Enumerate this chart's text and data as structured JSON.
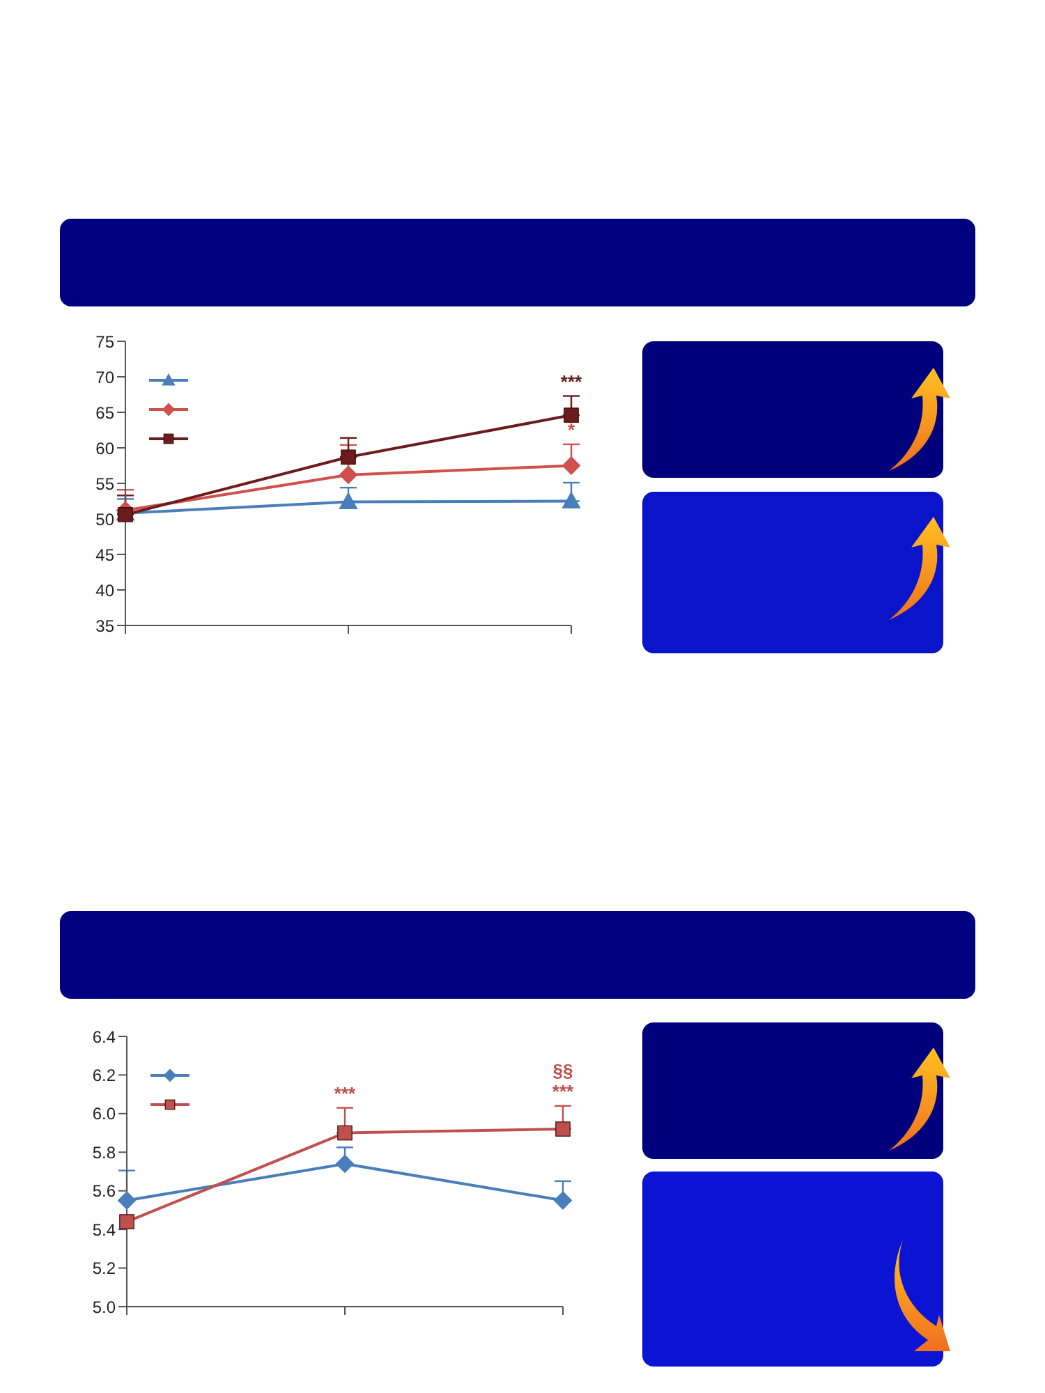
{
  "chart_data": [
    {
      "type": "line",
      "categories": [
        null,
        null,
        null
      ],
      "ylim": [
        35,
        75
      ],
      "yticks": [
        35,
        40,
        45,
        50,
        55,
        60,
        65,
        70,
        75
      ],
      "series": [
        {
          "color": "#4a7ebb",
          "marker": "triangle",
          "values": [
            50.8,
            52.4,
            52.5
          ],
          "errors": [
            [
              50.8,
              52.8
            ],
            [
              52.4,
              54.4
            ],
            [
              52.5,
              55.1
            ]
          ]
        },
        {
          "color": "#d0504d",
          "marker": "diamond",
          "values": [
            51.2,
            56.2,
            57.5
          ],
          "errors": [
            [
              51.2,
              54.1
            ],
            [
              56.2,
              60.4
            ],
            [
              57.5,
              60.5
            ]
          ],
          "value_labels": [
            null,
            null,
            "*"
          ]
        },
        {
          "color": "#6b1c1c",
          "marker": "square",
          "values": [
            50.6,
            58.7,
            64.6
          ],
          "errors": [
            [
              50.6,
              53.3
            ],
            [
              58.7,
              61.4
            ],
            [
              64.6,
              67.3
            ]
          ],
          "value_labels": [
            null,
            null,
            "***"
          ]
        }
      ]
    },
    {
      "type": "line",
      "categories": [
        null,
        null,
        null
      ],
      "ylim": [
        5.0,
        6.4
      ],
      "yticks": [
        {
          "value": 5.0,
          "label": "5.0"
        },
        5.2,
        5.4,
        5.6,
        5.8,
        {
          "value": 6.0,
          "label": "6.0"
        },
        6.2,
        6.4
      ],
      "series": [
        {
          "color": "#4a7ebb",
          "marker": "diamond",
          "values": [
            5.55,
            5.74,
            5.55
          ],
          "errors": [
            [
              5.55,
              5.705
            ],
            [
              5.74,
              5.825
            ],
            [
              5.55,
              5.65
            ]
          ]
        },
        {
          "color": "#c0504d",
          "marker": "square",
          "values": [
            5.44,
            5.9,
            5.92
          ],
          "errors": [
            null,
            [
              5.9,
              6.03
            ],
            [
              5.92,
              6.04
            ]
          ],
          "value_labels": [
            null,
            "***",
            "§§\n***"
          ]
        }
      ]
    }
  ]
}
